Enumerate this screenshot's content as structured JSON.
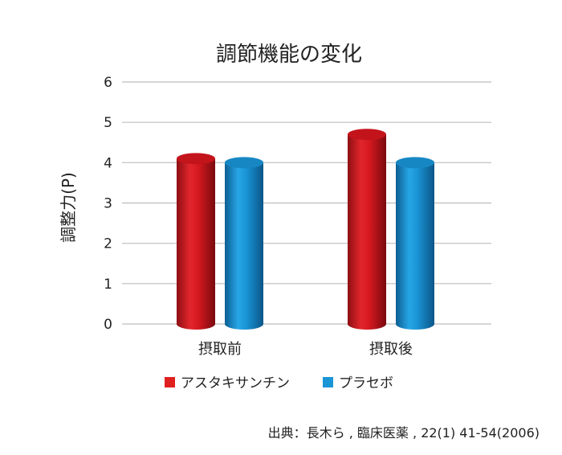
{
  "chart_data": {
    "type": "bar",
    "title": "調節機能の変化",
    "ylabel": "調整力(P)",
    "xlabel": "",
    "categories": [
      "摂取前",
      "摂取後"
    ],
    "series": [
      {
        "name": "アスタキサンチン",
        "values": [
          4.1,
          4.7
        ],
        "color": "#d71920"
      },
      {
        "name": "プラセボ",
        "values": [
          4.0,
          4.0
        ],
        "color": "#1a95d6"
      }
    ],
    "ylim": [
      0,
      6
    ],
    "yticks": [
      "0",
      "1",
      "2",
      "3",
      "4",
      "5",
      "6"
    ],
    "grid": true,
    "legend": "bottom"
  },
  "source": "出典：長木ら , 臨床医薬 , 22(1) 41-54(2006)"
}
